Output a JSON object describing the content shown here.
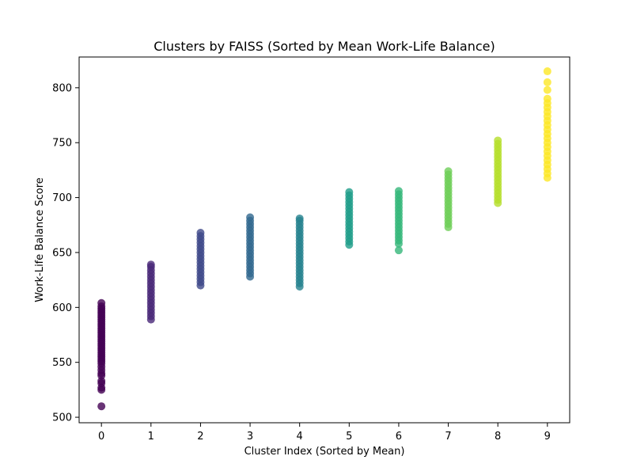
{
  "chart_data": {
    "type": "scatter",
    "title": "Clusters by FAISS (Sorted by Mean Work-Life Balance)",
    "xlabel": "Cluster Index (Sorted by Mean)",
    "ylabel": "Work-Life Balance Score",
    "xlim": [
      -0.45,
      9.45
    ],
    "ylim": [
      495,
      828
    ],
    "x_ticks": [
      0,
      1,
      2,
      3,
      4,
      5,
      6,
      7,
      8,
      9
    ],
    "y_ticks": [
      500,
      550,
      600,
      650,
      700,
      750,
      800
    ],
    "grid": false,
    "legend": "none",
    "series": [
      {
        "x": 0,
        "color": "#440154",
        "values": [
          510,
          525,
          527,
          531,
          533,
          538,
          540,
          543,
          546,
          549,
          551,
          553,
          555,
          557,
          559,
          561,
          563,
          565,
          567,
          569,
          571,
          573,
          575,
          577,
          579,
          581,
          583,
          585,
          587,
          589,
          591,
          593,
          595,
          597,
          599,
          601,
          604
        ]
      },
      {
        "x": 1,
        "color": "#482878",
        "values": [
          589,
          592,
          595,
          598,
          601,
          604,
          607,
          610,
          613,
          616,
          619,
          622,
          625,
          628,
          631,
          634,
          637,
          639
        ]
      },
      {
        "x": 2,
        "color": "#3e4989",
        "values": [
          620,
          623,
          626,
          629,
          632,
          635,
          638,
          641,
          644,
          647,
          650,
          653,
          656,
          659,
          662,
          665,
          668
        ]
      },
      {
        "x": 3,
        "color": "#31688e",
        "values": [
          628,
          631,
          634,
          637,
          640,
          643,
          646,
          649,
          652,
          655,
          658,
          661,
          664,
          667,
          670,
          673,
          676,
          679,
          682
        ]
      },
      {
        "x": 4,
        "color": "#26828e",
        "values": [
          619,
          622,
          625,
          628,
          631,
          634,
          637,
          640,
          643,
          646,
          649,
          652,
          655,
          658,
          661,
          664,
          667,
          670,
          673,
          676,
          679,
          681
        ]
      },
      {
        "x": 5,
        "color": "#1f9e89",
        "values": [
          657,
          660,
          663,
          666,
          669,
          672,
          675,
          678,
          681,
          684,
          687,
          690,
          693,
          696,
          699,
          702,
          705
        ]
      },
      {
        "x": 6,
        "color": "#35b779",
        "values": [
          652,
          658,
          661,
          664,
          667,
          670,
          673,
          676,
          679,
          682,
          685,
          688,
          691,
          694,
          697,
          700,
          703,
          706
        ]
      },
      {
        "x": 7,
        "color": "#6ece58",
        "values": [
          673,
          676,
          679,
          682,
          685,
          688,
          691,
          694,
          697,
          700,
          703,
          706,
          709,
          712,
          715,
          718,
          721,
          724
        ]
      },
      {
        "x": 8,
        "color": "#b5de2b",
        "values": [
          695,
          698,
          701,
          704,
          707,
          710,
          713,
          716,
          719,
          722,
          725,
          728,
          731,
          734,
          737,
          740,
          743,
          746,
          749,
          752
        ]
      },
      {
        "x": 9,
        "color": "#fde725",
        "values": [
          718,
          722,
          726,
          730,
          734,
          738,
          742,
          746,
          750,
          754,
          758,
          762,
          766,
          770,
          774,
          778,
          782,
          786,
          790,
          798,
          805,
          815
        ]
      }
    ]
  }
}
